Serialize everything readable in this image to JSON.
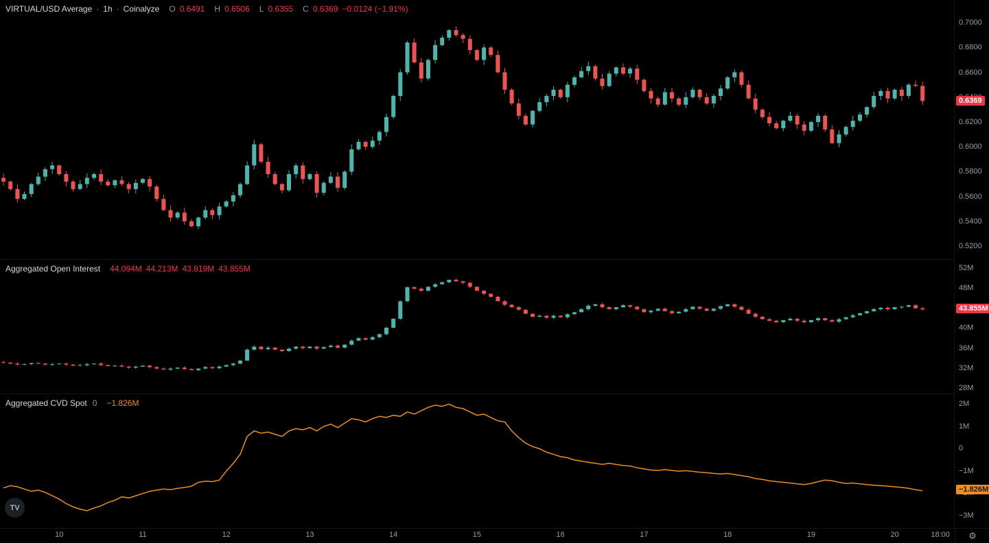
{
  "legend": {
    "price": {
      "title": "VIRTUAL/USD Average",
      "sep": "·",
      "interval": "1h",
      "source": "Coinalyze",
      "ohlc": [
        {
          "k": "O",
          "v": "0.6491"
        },
        {
          "k": "H",
          "v": "0.6506"
        },
        {
          "k": "L",
          "v": "0.6355"
        },
        {
          "k": "C",
          "v": "0.6369"
        }
      ],
      "change": "−0.0124 (−1.91%)"
    },
    "oi": {
      "title": "Aggregated Open Interest",
      "values": [
        "44.094M",
        "44.213M",
        "43.819M",
        "43.855M"
      ]
    },
    "cvd": {
      "title": "Aggregated CVD Spot",
      "param": "0",
      "value": "−1.826M"
    }
  },
  "badges": {
    "price": {
      "text": "0.6369",
      "bg": "#f23645",
      "fg": "#ffffff"
    },
    "oi": {
      "text": "43.855M",
      "bg": "#f23645",
      "fg": "#ffffff"
    },
    "cvd": {
      "text": "−1.826M",
      "bg": "#ef8e1c",
      "fg": "#15181e"
    }
  },
  "axes": {
    "price": {
      "labels": [
        {
          "text": "0.7000",
          "value": 0.7
        },
        {
          "text": "0.6800",
          "value": 0.68
        },
        {
          "text": "0.6600",
          "value": 0.66
        },
        {
          "text": "0.6400",
          "value": 0.64
        },
        {
          "text": "0.6200",
          "value": 0.62
        },
        {
          "text": "0.6000",
          "value": 0.6
        },
        {
          "text": "0.5800",
          "value": 0.58
        },
        {
          "text": "0.5600",
          "value": 0.56
        },
        {
          "text": "0.5400",
          "value": 0.54
        },
        {
          "text": "0.5200",
          "value": 0.52
        }
      ]
    },
    "oi": {
      "labels": [
        {
          "text": "52M",
          "value": 52
        },
        {
          "text": "48M",
          "value": 48
        },
        {
          "text": "44M",
          "value": 44
        },
        {
          "text": "40M",
          "value": 40
        },
        {
          "text": "36M",
          "value": 36
        },
        {
          "text": "32M",
          "value": 32
        },
        {
          "text": "28M",
          "value": 28
        }
      ]
    },
    "cvd": {
      "labels": [
        {
          "text": "2M",
          "value": 2
        },
        {
          "text": "1M",
          "value": 1
        },
        {
          "text": "0",
          "value": 0
        },
        {
          "text": "−1M",
          "value": -1
        },
        {
          "text": "−2M",
          "value": -2
        },
        {
          "text": "−3M",
          "value": -3
        }
      ]
    },
    "time": {
      "day_labels": [
        {
          "text": "10",
          "index": 8
        },
        {
          "text": "11",
          "index": 20
        },
        {
          "text": "12",
          "index": 32
        },
        {
          "text": "13",
          "index": 44
        },
        {
          "text": "14",
          "index": 56
        },
        {
          "text": "15",
          "index": 68
        },
        {
          "text": "16",
          "index": 80
        },
        {
          "text": "17",
          "index": 92
        },
        {
          "text": "18",
          "index": 104
        },
        {
          "text": "19",
          "index": 116
        },
        {
          "text": "20",
          "index": 128
        }
      ],
      "last_label": {
        "text": "18:00",
        "frac": 0.985
      }
    }
  },
  "colors": {
    "up": "#4db6ac",
    "down": "#ef5350",
    "cvd_line": "#ef8e1c",
    "legend_red": "#f23645",
    "axis_text": "#989ea8",
    "bg": "#000000",
    "separator": "#14171d"
  },
  "logo": {
    "text": "TV"
  },
  "gear_icon": "⚙",
  "wick_pattern": [
    0.9,
    0.3,
    1.0,
    0.5,
    0.2,
    0.8,
    0.4,
    0.7,
    0.25,
    0.6,
    0.35,
    0.85
  ],
  "chart_data": [
    {
      "name": "VIRTUAL/USD Average · 1h · Coinalyze",
      "type": "candlestick",
      "unit": "USD",
      "ylim": [
        0.5095,
        0.7183
      ],
      "axis_ticks": [
        0.52,
        0.54,
        0.56,
        0.58,
        0.6,
        0.62,
        0.64,
        0.66,
        0.68,
        0.7
      ],
      "last_ohlc": {
        "o": 0.6491,
        "h": 0.6506,
        "l": 0.6355,
        "c": 0.6369
      },
      "change": -0.0124,
      "change_pct": -1.91,
      "open_first": 0.575,
      "wick_base": 0.004,
      "closes": [
        0.572,
        0.566,
        0.558,
        0.562,
        0.57,
        0.576,
        0.582,
        0.585,
        0.578,
        0.572,
        0.566,
        0.57,
        0.575,
        0.578,
        0.572,
        0.569,
        0.573,
        0.57,
        0.566,
        0.571,
        0.574,
        0.568,
        0.558,
        0.549,
        0.543,
        0.547,
        0.54,
        0.536,
        0.543,
        0.549,
        0.545,
        0.552,
        0.556,
        0.561,
        0.57,
        0.585,
        0.602,
        0.588,
        0.578,
        0.57,
        0.565,
        0.578,
        0.585,
        0.574,
        0.578,
        0.563,
        0.571,
        0.576,
        0.567,
        0.58,
        0.598,
        0.604,
        0.6,
        0.605,
        0.612,
        0.624,
        0.641,
        0.66,
        0.684,
        0.668,
        0.655,
        0.67,
        0.682,
        0.688,
        0.694,
        0.69,
        0.687,
        0.678,
        0.67,
        0.68,
        0.674,
        0.66,
        0.646,
        0.635,
        0.625,
        0.618,
        0.629,
        0.636,
        0.641,
        0.646,
        0.64,
        0.65,
        0.656,
        0.661,
        0.665,
        0.655,
        0.649,
        0.659,
        0.664,
        0.659,
        0.663,
        0.654,
        0.645,
        0.639,
        0.634,
        0.644,
        0.639,
        0.634,
        0.64,
        0.646,
        0.64,
        0.635,
        0.641,
        0.647,
        0.656,
        0.66,
        0.65,
        0.639,
        0.63,
        0.624,
        0.619,
        0.615,
        0.621,
        0.625,
        0.618,
        0.613,
        0.62,
        0.625,
        0.614,
        0.603,
        0.61,
        0.616,
        0.621,
        0.626,
        0.632,
        0.641,
        0.645,
        0.639,
        0.646,
        0.641,
        0.65,
        0.6491,
        0.6369
      ]
    },
    {
      "name": "Aggregated Open Interest",
      "type": "candlestick",
      "unit": "M",
      "ylim": [
        27.0,
        53.8
      ],
      "axis_ticks": [
        28,
        32,
        36,
        40,
        44,
        48,
        52
      ],
      "last_ohlc": {
        "o": 44.094,
        "h": 44.213,
        "l": 43.819,
        "c": 43.855
      },
      "open_first": 33.3,
      "wick_base": 0.28,
      "closes": [
        33.2,
        33.0,
        32.8,
        32.9,
        33.1,
        33.0,
        32.8,
        32.9,
        33.0,
        32.8,
        32.6,
        32.7,
        32.9,
        33.0,
        32.7,
        32.5,
        32.6,
        32.4,
        32.2,
        32.4,
        32.6,
        32.3,
        32.0,
        31.8,
        32.0,
        32.2,
        31.9,
        31.7,
        32.0,
        32.3,
        32.1,
        32.4,
        32.7,
        33.0,
        33.6,
        35.8,
        36.4,
        35.9,
        36.2,
        35.8,
        35.5,
        36.0,
        36.4,
        36.1,
        36.4,
        36.0,
        36.3,
        36.6,
        36.2,
        36.8,
        37.6,
        38.1,
        37.8,
        38.3,
        38.9,
        40.2,
        42.0,
        45.5,
        48.3,
        48.0,
        47.6,
        48.4,
        48.9,
        49.3,
        49.8,
        49.5,
        49.2,
        48.4,
        47.6,
        47.0,
        46.4,
        45.5,
        44.8,
        44.3,
        43.8,
        43.0,
        42.4,
        42.6,
        42.2,
        42.6,
        42.3,
        42.9,
        43.3,
        43.9,
        44.6,
        44.9,
        44.3,
        43.9,
        44.3,
        44.7,
        44.4,
        43.9,
        43.3,
        43.6,
        44.0,
        43.5,
        43.1,
        43.4,
        43.9,
        44.4,
        44.0,
        43.6,
        44.0,
        44.5,
        44.9,
        44.4,
        43.8,
        43.0,
        42.4,
        41.9,
        41.6,
        41.3,
        41.7,
        42.0,
        41.6,
        41.3,
        41.7,
        42.1,
        41.7,
        41.4,
        41.9,
        42.3,
        42.7,
        43.1,
        43.5,
        43.9,
        44.2,
        43.9,
        44.3,
        44.4,
        44.7,
        44.094,
        43.855
      ]
    },
    {
      "name": "Aggregated CVD Spot",
      "type": "line",
      "unit": "M",
      "ylim": [
        -3.55,
        2.49
      ],
      "axis_ticks": [
        -3,
        -2,
        -1,
        0,
        1,
        2
      ],
      "last_value": -1.826,
      "values": [
        -1.7,
        -1.6,
        -1.65,
        -1.75,
        -1.85,
        -1.8,
        -1.9,
        -2.05,
        -2.2,
        -2.4,
        -2.55,
        -2.65,
        -2.72,
        -2.6,
        -2.5,
        -2.35,
        -2.25,
        -2.1,
        -2.15,
        -2.05,
        -1.95,
        -1.85,
        -1.8,
        -1.75,
        -1.78,
        -1.72,
        -1.68,
        -1.62,
        -1.45,
        -1.4,
        -1.42,
        -1.35,
        -0.95,
        -0.6,
        -0.2,
        0.6,
        0.85,
        0.75,
        0.8,
        0.7,
        0.6,
        0.85,
        0.95,
        0.9,
        1.0,
        0.85,
        1.05,
        1.15,
        1.0,
        1.2,
        1.4,
        1.35,
        1.25,
        1.4,
        1.5,
        1.45,
        1.55,
        1.5,
        1.7,
        1.6,
        1.75,
        1.9,
        2.0,
        1.95,
        2.05,
        1.9,
        1.85,
        1.7,
        1.55,
        1.6,
        1.45,
        1.3,
        1.25,
        0.85,
        0.55,
        0.3,
        0.15,
        0.05,
        -0.1,
        -0.2,
        -0.3,
        -0.35,
        -0.45,
        -0.5,
        -0.55,
        -0.6,
        -0.65,
        -0.6,
        -0.65,
        -0.7,
        -0.72,
        -0.8,
        -0.85,
        -0.9,
        -0.92,
        -0.88,
        -0.92,
        -0.95,
        -0.93,
        -0.96,
        -1.0,
        -1.02,
        -1.05,
        -1.08,
        -1.05,
        -1.1,
        -1.15,
        -1.2,
        -1.28,
        -1.32,
        -1.38,
        -1.42,
        -1.45,
        -1.48,
        -1.52,
        -1.55,
        -1.5,
        -1.42,
        -1.35,
        -1.38,
        -1.45,
        -1.5,
        -1.48,
        -1.52,
        -1.55,
        -1.58,
        -1.6,
        -1.62,
        -1.65,
        -1.68,
        -1.72,
        -1.78,
        -1.826
      ]
    }
  ]
}
